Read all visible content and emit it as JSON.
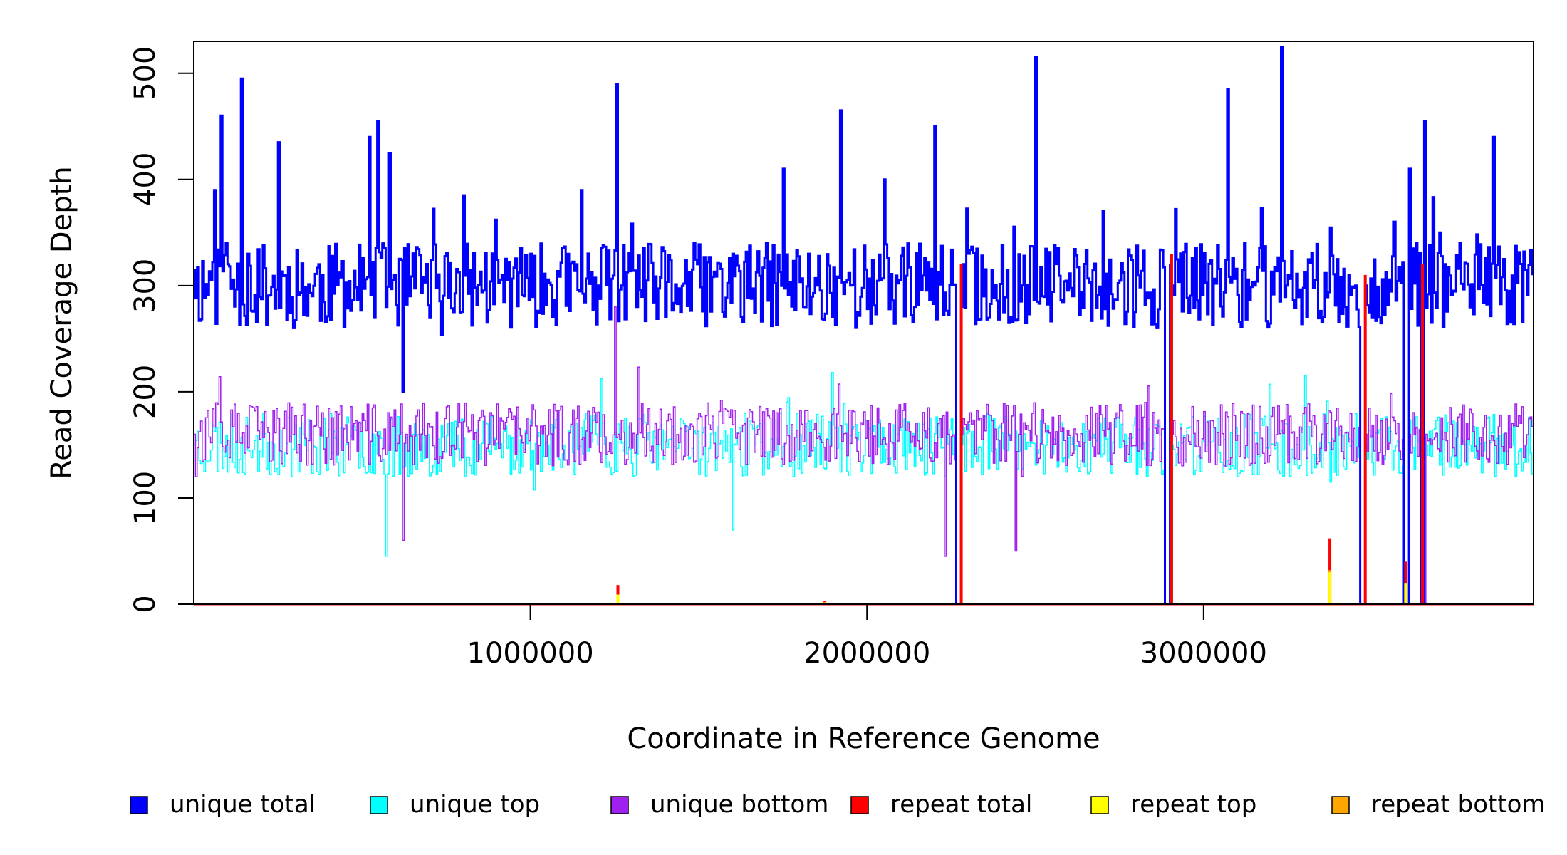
{
  "chart_data": {
    "type": "line",
    "title": "",
    "xlabel": "Coordinate in Reference Genome",
    "ylabel": "Read Coverage Depth",
    "xlim": [
      1,
      3980000
    ],
    "ylim": [
      0,
      530
    ],
    "x_ticks": [
      1000000,
      2000000,
      3000000
    ],
    "x_tick_labels": [
      "1000000",
      "2000000",
      "3000000"
    ],
    "y_ticks": [
      0,
      100,
      200,
      300,
      400,
      500
    ],
    "y_tick_labels": [
      "0",
      "100",
      "200",
      "300",
      "400",
      "500"
    ],
    "grid": false,
    "legend_position": "bottom",
    "bin_width": 5000,
    "series": [
      {
        "name": "unique total",
        "color": "#0000ff",
        "line_width": 3,
        "levels": [
          {
            "x": 0,
            "y": 315
          },
          {
            "x": 50000,
            "y": 305
          },
          {
            "x": 60000,
            "y": 390
          },
          {
            "x": 80000,
            "y": 460
          },
          {
            "x": 95000,
            "y": 340
          },
          {
            "x": 140000,
            "y": 495
          },
          {
            "x": 160000,
            "y": 330
          },
          {
            "x": 250000,
            "y": 435
          },
          {
            "x": 350000,
            "y": 290
          },
          {
            "x": 520000,
            "y": 440
          },
          {
            "x": 545000,
            "y": 455
          },
          {
            "x": 580000,
            "y": 425
          },
          {
            "x": 620000,
            "y": 200
          },
          {
            "x": 800000,
            "y": 385
          },
          {
            "x": 1000000,
            "y": 330
          },
          {
            "x": 1150000,
            "y": 390
          },
          {
            "x": 1200000,
            "y": 300
          },
          {
            "x": 1255000,
            "y": 490
          },
          {
            "x": 1270000,
            "y": 300
          },
          {
            "x": 1400000,
            "y": 270
          },
          {
            "x": 1600000,
            "y": 330
          },
          {
            "x": 1750000,
            "y": 410
          },
          {
            "x": 1850000,
            "y": 300
          },
          {
            "x": 1920000,
            "y": 465
          },
          {
            "x": 1950000,
            "y": 300
          },
          {
            "x": 2050000,
            "y": 400
          },
          {
            "x": 2200000,
            "y": 450
          },
          {
            "x": 2270000,
            "y": 0
          },
          {
            "x": 2280000,
            "y": 280
          },
          {
            "x": 2300000,
            "y": 330
          },
          {
            "x": 2500000,
            "y": 515
          },
          {
            "x": 2520000,
            "y": 290
          },
          {
            "x": 2700000,
            "y": 370
          },
          {
            "x": 2890000,
            "y": 0
          },
          {
            "x": 2905000,
            "y": 300
          },
          {
            "x": 3070000,
            "y": 485
          },
          {
            "x": 3150000,
            "y": 300
          },
          {
            "x": 3230000,
            "y": 525
          },
          {
            "x": 3245000,
            "y": 300
          },
          {
            "x": 3450000,
            "y": 300
          },
          {
            "x": 3470000,
            "y": 0
          },
          {
            "x": 3480000,
            "y": 300
          },
          {
            "x": 3600000,
            "y": 0
          },
          {
            "x": 3610000,
            "y": 410
          },
          {
            "x": 3650000,
            "y": 0
          },
          {
            "x": 3655000,
            "y": 455
          },
          {
            "x": 3700000,
            "y": 350
          },
          {
            "x": 3860000,
            "y": 440
          },
          {
            "x": 3980000,
            "y": 330
          }
        ],
        "noise": 40,
        "seed": 11
      },
      {
        "name": "unique top",
        "color": "#00ffff",
        "line_width": 1.5,
        "levels": [
          {
            "x": 0,
            "y": 150
          },
          {
            "x": 450000,
            "y": 150
          },
          {
            "x": 570000,
            "y": 45
          },
          {
            "x": 580000,
            "y": 150
          },
          {
            "x": 1200000,
            "y": 150
          },
          {
            "x": 1600000,
            "y": 70
          },
          {
            "x": 1610000,
            "y": 150
          },
          {
            "x": 2270000,
            "y": 0
          },
          {
            "x": 2280000,
            "y": 150
          },
          {
            "x": 2890000,
            "y": 0
          },
          {
            "x": 2905000,
            "y": 150
          },
          {
            "x": 3470000,
            "y": 0
          },
          {
            "x": 3480000,
            "y": 150
          },
          {
            "x": 3600000,
            "y": 0
          },
          {
            "x": 3610000,
            "y": 150
          },
          {
            "x": 3650000,
            "y": 0
          },
          {
            "x": 3660000,
            "y": 150
          },
          {
            "x": 3980000,
            "y": 150
          }
        ],
        "noise": 30,
        "seed": 23
      },
      {
        "name": "unique bottom",
        "color": "#a020f0",
        "line_width": 1.5,
        "levels": [
          {
            "x": 0,
            "y": 160
          },
          {
            "x": 620000,
            "y": 60
          },
          {
            "x": 630000,
            "y": 160
          },
          {
            "x": 1250000,
            "y": 280
          },
          {
            "x": 1260000,
            "y": 160
          },
          {
            "x": 2230000,
            "y": 45
          },
          {
            "x": 2240000,
            "y": 160
          },
          {
            "x": 2270000,
            "y": 0
          },
          {
            "x": 2280000,
            "y": 160
          },
          {
            "x": 2440000,
            "y": 50
          },
          {
            "x": 2450000,
            "y": 160
          },
          {
            "x": 2890000,
            "y": 0
          },
          {
            "x": 2905000,
            "y": 160
          },
          {
            "x": 3470000,
            "y": 0
          },
          {
            "x": 3480000,
            "y": 160
          },
          {
            "x": 3600000,
            "y": 0
          },
          {
            "x": 3610000,
            "y": 160
          },
          {
            "x": 3650000,
            "y": 0
          },
          {
            "x": 3660000,
            "y": 160
          },
          {
            "x": 3980000,
            "y": 160
          }
        ],
        "noise": 30,
        "seed": 37
      },
      {
        "name": "repeat total",
        "color": "#ff0000",
        "line_width": 3,
        "spikes": [
          {
            "x": 1260000,
            "y": 18
          },
          {
            "x": 1875000,
            "y": 3
          },
          {
            "x": 2280000,
            "y": 320
          },
          {
            "x": 2905000,
            "y": 330
          },
          {
            "x": 3375000,
            "y": 62
          },
          {
            "x": 3480000,
            "y": 310
          },
          {
            "x": 3600000,
            "y": 40
          },
          {
            "x": 3650000,
            "y": 320
          }
        ]
      },
      {
        "name": "repeat top",
        "color": "#ffff00",
        "line_width": 1.5,
        "spikes": [
          {
            "x": 1260000,
            "y": 9
          },
          {
            "x": 3375000,
            "y": 30
          },
          {
            "x": 3600000,
            "y": 20
          }
        ]
      },
      {
        "name": "repeat bottom",
        "color": "#ffa500",
        "line_width": 1.5,
        "spikes": [
          {
            "x": 1260000,
            "y": 9
          },
          {
            "x": 1875000,
            "y": 2
          },
          {
            "x": 3375000,
            "y": 32
          },
          {
            "x": 3600000,
            "y": 20
          }
        ]
      }
    ]
  }
}
